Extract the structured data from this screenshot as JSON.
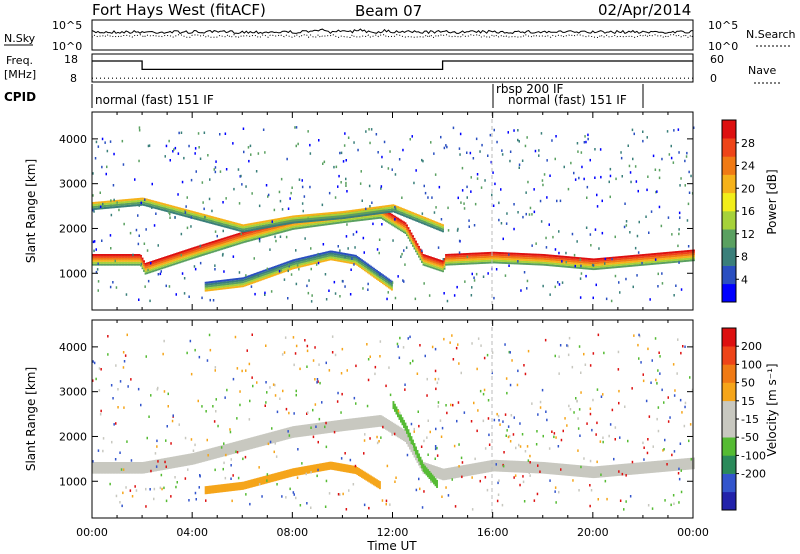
{
  "header": {
    "radar": "Fort Hays West (fitACF)",
    "beam": "Beam 07",
    "date": "02/Apr/2014"
  },
  "noise_panel": {
    "left_label": "N.Sky",
    "left_ticks": [
      "10^5",
      "10^0"
    ],
    "right_label": "N.Search",
    "right_ticks": [
      "10^5",
      "10^0"
    ],
    "line_color": "#000000"
  },
  "freq_panel": {
    "left_label_top": "Freq.",
    "left_label_bottom": "[MHz]",
    "left_ticks": [
      "18",
      "8"
    ],
    "right_label": "Nave",
    "right_ticks": [
      "60",
      "0"
    ],
    "freq_steps": [
      {
        "start_hour": 0,
        "end_hour": 2,
        "level": 0.75
      },
      {
        "start_hour": 2,
        "end_hour": 14,
        "level": 0.45
      },
      {
        "start_hour": 14,
        "end_hour": 24,
        "level": 0.75
      }
    ],
    "nave_level": 0.35
  },
  "cpid": {
    "label": "CPID",
    "segments": [
      {
        "text": "normal (fast) 151 IF",
        "start_hour": 0,
        "end_hour": 16
      },
      {
        "text": "rbsp 200 IF",
        "start_hour": 16,
        "end_hour": 18
      },
      {
        "text": "normal (fast) 151 IF",
        "start_hour": 18,
        "end_hour": 22.5
      }
    ]
  },
  "chart_data": [
    {
      "type": "heatmap",
      "name": "power",
      "ylabel": "Slant Range [km]",
      "y_ticks": [
        1000,
        2000,
        3000,
        4000
      ],
      "x_ticks": [
        "00:00",
        "04:00",
        "08:00",
        "12:00",
        "16:00",
        "20:00",
        "00:00"
      ],
      "xlabel": "Time UT",
      "xlim_hours": [
        0,
        24
      ],
      "ylim_km": [
        180,
        4600
      ],
      "colorbar": {
        "label": "Power [dB]",
        "ticks": [
          "4",
          "8",
          "12",
          "16",
          "20",
          "24",
          "28"
        ],
        "colors": [
          "#0000ff",
          "#2a4fc0",
          "#3a7f7a",
          "#5aa060",
          "#a6d23a",
          "#f2ee1a",
          "#f5b21a",
          "#f07a14",
          "#ee4418",
          "#dd1010"
        ]
      },
      "echo_bands": [
        {
          "label": "main",
          "points": [
            [
              0,
              1300
            ],
            [
              1.9,
              1300
            ],
            [
              2.1,
              1100
            ],
            [
              4,
              1450
            ],
            [
              6,
              1800
            ],
            [
              8,
              2100
            ],
            [
              10,
              2250
            ],
            [
              11.5,
              2350
            ],
            [
              12.5,
              2000
            ],
            [
              13.2,
              1300
            ],
            [
              14,
              1150
            ],
            [
              14.1,
              1300
            ],
            [
              16,
              1350
            ],
            [
              18,
              1300
            ],
            [
              20,
              1200
            ],
            [
              22,
              1300
            ],
            [
              24,
              1400
            ]
          ],
          "colors": [
            "#dd1010",
            "#ee4418",
            "#f07a14",
            "#f5b21a",
            "#a6d23a",
            "#5aa060"
          ]
        },
        {
          "label": "upper",
          "points": [
            [
              0,
              2500
            ],
            [
              2,
              2600
            ],
            [
              4,
              2300
            ],
            [
              6,
              2000
            ],
            [
              8,
              2200
            ],
            [
              10,
              2300
            ],
            [
              12,
              2450
            ],
            [
              14,
              2000
            ]
          ],
          "colors": [
            "#f5b21a",
            "#a6d23a",
            "#5aa060",
            "#3a7f7a"
          ]
        },
        {
          "label": "lower",
          "points": [
            [
              4.5,
              700
            ],
            [
              6,
              800
            ],
            [
              8,
              1200
            ],
            [
              9.5,
              1400
            ],
            [
              10.5,
              1300
            ],
            [
              11.5,
              900
            ],
            [
              12,
              700
            ]
          ],
          "colors": [
            "#2a4fc0",
            "#3a7f7a",
            "#5aa060",
            "#a6d23a",
            "#f5b21a"
          ]
        }
      ]
    },
    {
      "type": "heatmap",
      "name": "velocity",
      "ylabel": "Slant Range [km]",
      "y_ticks": [
        1000,
        2000,
        3000,
        4000
      ],
      "x_ticks": [
        "00:00",
        "04:00",
        "08:00",
        "12:00",
        "16:00",
        "20:00",
        "00:00"
      ],
      "xlabel": "Time UT",
      "xlim_hours": [
        0,
        24
      ],
      "ylim_km": [
        180,
        4600
      ],
      "colorbar": {
        "label": "Velocity [m s⁻¹]",
        "ticks": [
          "200",
          "100",
          "50",
          "15",
          "-15",
          "-50",
          "-100",
          "-200"
        ],
        "colors": [
          "#2222aa",
          "#3355cc",
          "#2a8a5a",
          "#55bb33",
          "#c8c8c0",
          "#c8c8c0",
          "#f5a51a",
          "#f07a14",
          "#ee4418",
          "#dd1010"
        ]
      },
      "echo_bands": [
        {
          "label": "ground",
          "points": [
            [
              0,
              1300
            ],
            [
              2,
              1300
            ],
            [
              4,
              1500
            ],
            [
              6,
              1800
            ],
            [
              8,
              2100
            ],
            [
              10,
              2250
            ],
            [
              11.5,
              2350
            ],
            [
              12.5,
              2000
            ],
            [
              13.2,
              1300
            ],
            [
              14,
              1150
            ],
            [
              16,
              1350
            ],
            [
              18,
              1300
            ],
            [
              20,
              1200
            ],
            [
              22,
              1300
            ],
            [
              24,
              1400
            ]
          ],
          "colors": [
            "#c8c8c0"
          ]
        },
        {
          "label": "westward",
          "points": [
            [
              4.5,
              800
            ],
            [
              6,
              900
            ],
            [
              8,
              1200
            ],
            [
              9.5,
              1350
            ],
            [
              10.5,
              1250
            ],
            [
              11.5,
              900
            ]
          ],
          "colors": [
            "#f5a51a"
          ]
        },
        {
          "label": "eastward",
          "points": [
            [
              12,
              2700
            ],
            [
              12.5,
              2200
            ],
            [
              13.2,
              1300
            ],
            [
              13.8,
              900
            ]
          ],
          "colors": [
            "#55bb33"
          ]
        }
      ]
    }
  ]
}
